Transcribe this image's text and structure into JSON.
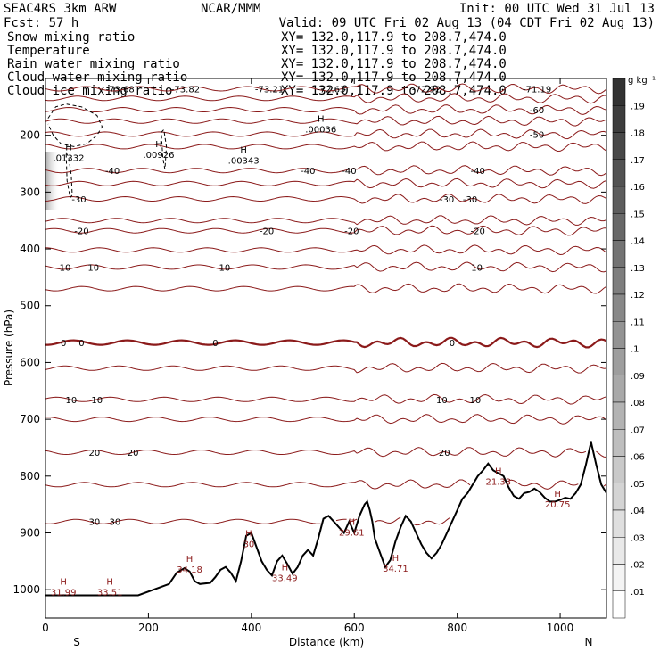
{
  "header": {
    "model": "SEAC4RS  3km ARW",
    "center": "NCAR/MMM",
    "init": "Init: 00 UTC Wed 31 Jul 13",
    "fcst": "Fcst:   57 h",
    "valid": "Valid: 09 UTC Fri 02 Aug 13 (04 CDT Fri 02 Aug 13)"
  },
  "fields": [
    {
      "name": "Snow mixing ratio",
      "xy": "XY= 132.0,117.9 to 208.7,474.0",
      "color": "#000000",
      "xy_color": "#000000"
    },
    {
      "name": "Temperature",
      "xy": "XY= 132.0,117.9 to 208.7,474.0",
      "color": "#8b0000",
      "xy_color": "#cc0000"
    },
    {
      "name": "Rain water mixing ratio",
      "xy": "XY= 132.0,117.9 to 208.7,474.0",
      "color": "#cc0000",
      "xy_color": "#cc0000"
    },
    {
      "name": "Cloud water mixing ratio",
      "xy": "XY= 132.0,117.9 to 208.7,474.0",
      "color": "#0000aa",
      "xy_color": "#0000aa"
    },
    {
      "name": "Cloud ice mixing ratio",
      "xy": "XY= 132.0,117.9 to 208.7,474.0",
      "color": "#000000",
      "xy_color": "#000000"
    }
  ],
  "chart_data": {
    "type": "cross-section",
    "xlabel": "Distance (km)",
    "ylabel": "Pressure (hPa)",
    "xlim": [
      0,
      1090
    ],
    "ylim": [
      1050,
      100
    ],
    "x_ticks": [
      0,
      200,
      400,
      600,
      800,
      1000
    ],
    "y_ticks": [
      200,
      300,
      400,
      500,
      600,
      700,
      800,
      900,
      1000
    ],
    "start_label": "S",
    "end_label": "N",
    "colorbar": {
      "unit": "g kg⁻¹",
      "levels": [
        0.01,
        0.02,
        0.03,
        0.04,
        0.05,
        0.06,
        0.07,
        0.08,
        0.09,
        0.1,
        0.11,
        0.12,
        0.13,
        0.14,
        0.15,
        0.16,
        0.17,
        0.18,
        0.19
      ],
      "labels": [
        ".01",
        ".02",
        ".03",
        ".04",
        ".05",
        ".06",
        ".07",
        ".08",
        ".09",
        ".1",
        ".11",
        ".12",
        ".13",
        ".14",
        ".15",
        ".16",
        ".17",
        ".18",
        ".19"
      ]
    },
    "terrain": {
      "x": [
        0,
        180,
        240,
        255,
        270,
        280,
        290,
        300,
        320,
        330,
        340,
        350,
        360,
        370,
        380,
        390,
        400,
        410,
        420,
        430,
        440,
        450,
        460,
        470,
        480,
        490,
        500,
        510,
        520,
        530,
        540,
        550,
        560,
        570,
        580,
        590,
        600,
        610,
        620,
        625,
        630,
        635,
        640,
        650,
        660,
        670,
        680,
        690,
        700,
        710,
        720,
        730,
        740,
        750,
        760,
        770,
        780,
        790,
        800,
        810,
        820,
        830,
        840,
        850,
        860,
        870,
        880,
        890,
        900,
        910,
        920,
        930,
        940,
        950,
        960,
        970,
        980,
        990,
        1000,
        1010,
        1020,
        1030,
        1040,
        1050,
        1060,
        1070,
        1080,
        1090
      ],
      "p": [
        1010,
        1010,
        990,
        970,
        962,
        968,
        985,
        990,
        988,
        978,
        965,
        960,
        970,
        985,
        950,
        905,
        900,
        925,
        950,
        965,
        975,
        950,
        940,
        955,
        972,
        960,
        940,
        930,
        940,
        910,
        875,
        870,
        880,
        890,
        900,
        880,
        900,
        870,
        850,
        845,
        860,
        880,
        910,
        935,
        960,
        948,
        915,
        890,
        870,
        880,
        900,
        920,
        935,
        945,
        935,
        920,
        900,
        880,
        860,
        840,
        830,
        815,
        800,
        790,
        778,
        790,
        795,
        800,
        820,
        835,
        840,
        830,
        828,
        822,
        828,
        838,
        845,
        845,
        842,
        838,
        840,
        830,
        815,
        780,
        740,
        780,
        815,
        830
      ]
    },
    "isotherms": [
      {
        "level": -70,
        "p": 118,
        "labels": [
          {
            "text": "-73.68",
            "x": 145
          },
          {
            "text": "-73.82",
            "x": 272
          },
          {
            "text": "-73.21",
            "x": 435
          },
          {
            "text": "-72.63",
            "x": 555
          },
          {
            "text": "-72.92",
            "x": 740
          },
          {
            "text": "-71.19",
            "x": 955
          }
        ]
      },
      {
        "level": -65,
        "p": 135,
        "labels": []
      },
      {
        "level": -60,
        "p": 155,
        "labels": [
          {
            "text": "-60",
            "x": 955
          }
        ]
      },
      {
        "level": -55,
        "p": 175,
        "labels": []
      },
      {
        "level": -50,
        "p": 198,
        "labels": [
          {
            "text": "-50",
            "x": 955
          }
        ]
      },
      {
        "level": -45,
        "p": 220,
        "labels": []
      },
      {
        "level": -40,
        "p": 262,
        "labels": [
          {
            "text": "-40",
            "x": 130
          },
          {
            "text": "-40",
            "x": 510
          },
          {
            "text": "-40",
            "x": 590
          },
          {
            "text": "-40",
            "x": 840
          }
        ]
      },
      {
        "level": -35,
        "p": 285,
        "labels": []
      },
      {
        "level": -30,
        "p": 312,
        "labels": [
          {
            "text": "-30",
            "x": 65
          },
          {
            "text": "-30",
            "x": 780
          },
          {
            "text": "-30",
            "x": 825
          }
        ]
      },
      {
        "level": -25,
        "p": 350,
        "labels": []
      },
      {
        "level": -20,
        "p": 368,
        "labels": [
          {
            "text": "-20",
            "x": 70
          },
          {
            "text": "-20",
            "x": 430
          },
          {
            "text": "-20",
            "x": 595
          },
          {
            "text": "-20",
            "x": 840
          }
        ]
      },
      {
        "level": -15,
        "p": 402,
        "labels": []
      },
      {
        "level": -10,
        "p": 432,
        "labels": [
          {
            "text": "-10",
            "x": 35
          },
          {
            "text": "-10",
            "x": 90
          },
          {
            "text": "-10",
            "x": 345
          },
          {
            "text": "-10",
            "x": 835
          }
        ]
      },
      {
        "level": -5,
        "p": 470,
        "labels": []
      },
      {
        "level": 0,
        "p": 565,
        "labels": [
          {
            "text": "0",
            "x": 35
          },
          {
            "text": "0",
            "x": 70
          },
          {
            "text": "0",
            "x": 330
          },
          {
            "text": "0",
            "x": 790
          }
        ]
      },
      {
        "level": 5,
        "p": 610,
        "labels": []
      },
      {
        "level": 10,
        "p": 665,
        "labels": [
          {
            "text": "10",
            "x": 50
          },
          {
            "text": "10",
            "x": 100
          },
          {
            "text": "10",
            "x": 770
          },
          {
            "text": "10",
            "x": 835
          }
        ]
      },
      {
        "level": 15,
        "p": 700,
        "labels": []
      },
      {
        "level": 20,
        "p": 758,
        "labels": [
          {
            "text": "20",
            "x": 95
          },
          {
            "text": "20",
            "x": 170
          },
          {
            "text": "20",
            "x": 775
          }
        ]
      },
      {
        "level": 25,
        "p": 815,
        "labels": []
      },
      {
        "level": 30,
        "p": 880,
        "labels": [
          {
            "text": "30",
            "x": 95
          },
          {
            "text": "30",
            "x": 135
          }
        ]
      }
    ],
    "temperature_highs": [
      {
        "text": "31.99",
        "x": 35,
        "p": 1010
      },
      {
        "text": "33.51",
        "x": 125,
        "p": 1010
      },
      {
        "text": "34.18",
        "x": 280,
        "p": 970
      },
      {
        "text": "30",
        "x": 395,
        "p": 925
      },
      {
        "text": "33.49",
        "x": 465,
        "p": 985
      },
      {
        "text": "29.61",
        "x": 595,
        "p": 905
      },
      {
        "text": "34.71",
        "x": 680,
        "p": 968
      },
      {
        "text": "21.33",
        "x": 880,
        "p": 815
      },
      {
        "text": "20.75",
        "x": 995,
        "p": 855
      }
    ],
    "ice_highs": [
      {
        "text": ".01332",
        "x": 45,
        "p": 245
      },
      {
        "text": ".00926",
        "x": 220,
        "p": 240
      },
      {
        "text": ".00343",
        "x": 385,
        "p": 250
      },
      {
        "text": ".00036",
        "x": 535,
        "p": 195
      }
    ],
    "dashed_contours": [
      {
        "x": [
          5,
          20,
          40,
          70,
          100,
          110,
          100,
          80,
          55,
          30,
          15,
          5
        ],
        "p": [
          170,
          150,
          145,
          150,
          165,
          185,
          200,
          215,
          220,
          215,
          200,
          180
        ]
      },
      {
        "x": [
          40,
          45,
          50,
          52,
          48,
          42,
          40
        ],
        "p": [
          230,
          240,
          270,
          305,
          310,
          280,
          230
        ]
      },
      {
        "x": [
          225,
          230,
          235,
          232,
          228,
          225
        ],
        "p": [
          195,
          190,
          220,
          260,
          240,
          195
        ]
      }
    ]
  }
}
